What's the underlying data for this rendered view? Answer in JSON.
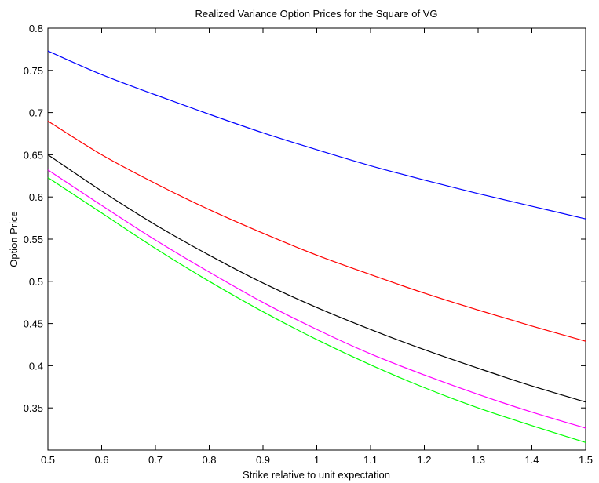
{
  "chart_data": {
    "type": "line",
    "title": "Realized Variance Option Prices for the Square of VG",
    "xlabel": "Strike relative to unit expectation",
    "ylabel": "Option Price",
    "xlim": [
      0.5,
      1.5
    ],
    "ylim": [
      0.3,
      0.8
    ],
    "xticks": [
      "0.5",
      "0.6",
      "0.7",
      "0.8",
      "0.9",
      "1",
      "1.1",
      "1.2",
      "1.3",
      "1.4",
      "1.5"
    ],
    "yticks": [
      "0.35",
      "0.4",
      "0.45",
      "0.5",
      "0.55",
      "0.6",
      "0.65",
      "0.7",
      "0.75",
      "0.8"
    ],
    "grid": false,
    "x": [
      0.5,
      0.6,
      0.7,
      0.8,
      0.9,
      1.0,
      1.1,
      1.2,
      1.3,
      1.4,
      1.5
    ],
    "series": [
      {
        "color": "#0000ff",
        "values": [
          0.773,
          0.745,
          0.721,
          0.698,
          0.676,
          0.656,
          0.637,
          0.62,
          0.604,
          0.589,
          0.574
        ]
      },
      {
        "color": "#ff0000",
        "values": [
          0.69,
          0.65,
          0.616,
          0.585,
          0.557,
          0.531,
          0.508,
          0.486,
          0.466,
          0.447,
          0.429
        ]
      },
      {
        "color": "#000000",
        "values": [
          0.65,
          0.607,
          0.567,
          0.531,
          0.498,
          0.469,
          0.443,
          0.419,
          0.397,
          0.376,
          0.357
        ]
      },
      {
        "color": "#ff00ff",
        "values": [
          0.632,
          0.59,
          0.549,
          0.511,
          0.475,
          0.443,
          0.414,
          0.389,
          0.366,
          0.345,
          0.326
        ]
      },
      {
        "color": "#00ff00",
        "values": [
          0.623,
          0.581,
          0.539,
          0.5,
          0.464,
          0.431,
          0.401,
          0.374,
          0.35,
          0.329,
          0.309
        ]
      }
    ]
  }
}
